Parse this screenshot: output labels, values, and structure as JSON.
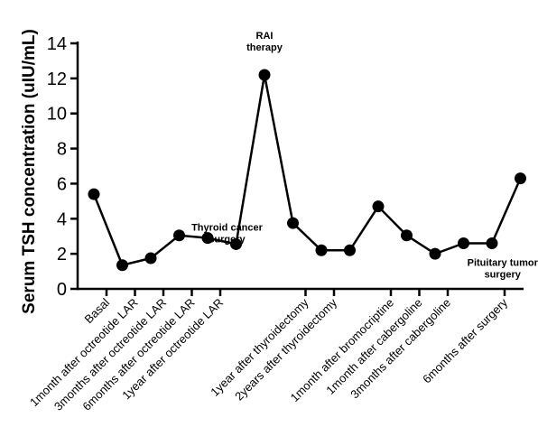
{
  "chart_data": {
    "type": "line",
    "ylabel": "Serum  TSH concentration (uIU/mL)",
    "xlabel": "",
    "ylim": [
      0,
      14
    ],
    "yticks": [
      "0",
      "2",
      "4",
      "6",
      "8",
      "10",
      "12",
      "14"
    ],
    "categories": [
      "Basal",
      "1month after octreotide LAR",
      "3months after octreotide LAR",
      "6months after octreotide LAR",
      "1year after octreotide LAR",
      "",
      "",
      "1year after thyroidectomy",
      "2years after thyroidectomy",
      "",
      "1month after bromocriptine",
      "1month after cabergoline",
      "3months after cabergoline",
      "",
      "6months after surgery"
    ],
    "x": [
      1,
      2,
      3,
      4,
      5,
      6,
      7,
      8,
      9,
      10,
      11,
      12,
      13,
      14,
      15,
      16
    ],
    "values": [
      5.4,
      1.35,
      1.75,
      3.05,
      2.9,
      2.55,
      12.2,
      3.75,
      2.2,
      2.2,
      4.7,
      3.05,
      2.0,
      2.6,
      2.6,
      6.3
    ],
    "label_positions": [
      1,
      2,
      3,
      4,
      5,
      8,
      9,
      11,
      12,
      13,
      15
    ],
    "grid": false,
    "annotations": [
      {
        "text": [
          "RAI",
          "therapy"
        ],
        "x": 7,
        "y": 12.2
      },
      {
        "text": [
          "Thyroid cancer",
          "surgery"
        ],
        "x": 6,
        "y": 2.55
      },
      {
        "text": [
          "Pituitary tumor",
          "surgery"
        ],
        "x": 15.5,
        "y": 2.6
      }
    ]
  }
}
